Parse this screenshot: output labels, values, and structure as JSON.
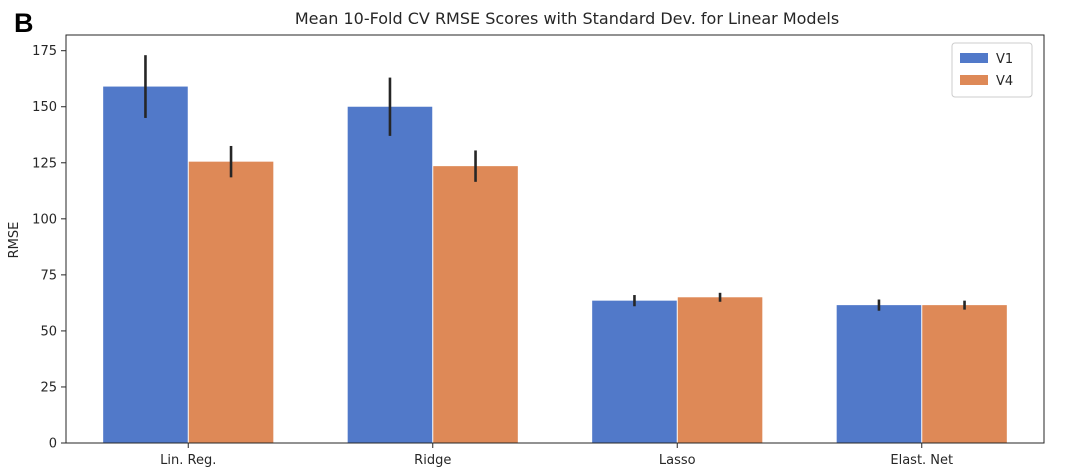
{
  "panel_label": "B",
  "chart_data": {
    "type": "bar",
    "title": "Mean 10-Fold CV RMSE Scores with Standard Dev. for Linear Models",
    "xlabel": "",
    "ylabel": "RMSE",
    "categories": [
      "Lin. Reg.",
      "Ridge",
      "Lasso",
      "Elast. Net"
    ],
    "ylim": [
      0,
      182
    ],
    "yticks": [
      0,
      25,
      50,
      75,
      100,
      125,
      150,
      175
    ],
    "grid": false,
    "legend_position": "top-right",
    "series": [
      {
        "name": "V1",
        "color": "#5179c9",
        "values": [
          159,
          150,
          63.5,
          61.5
        ],
        "std": [
          14,
          13,
          2.5,
          2.5
        ]
      },
      {
        "name": "V4",
        "color": "#de8957",
        "values": [
          125.5,
          123.5,
          65,
          61.5
        ],
        "std": [
          7,
          7,
          2,
          2
        ]
      }
    ]
  }
}
